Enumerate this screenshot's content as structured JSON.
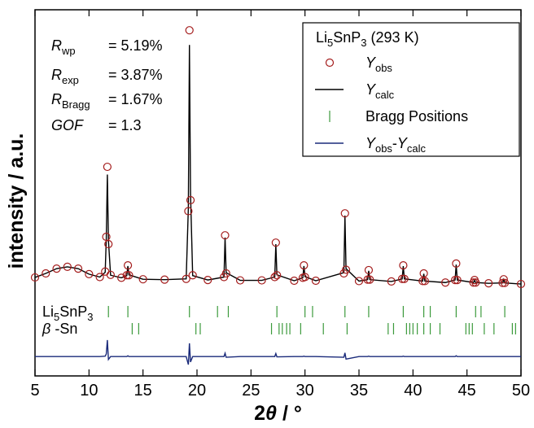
{
  "chart_data": {
    "type": "rietveld",
    "x_label": "2θ / °",
    "y_label": "intensity / a.u.",
    "xlim": [
      5,
      50
    ],
    "xticks": [
      5,
      10,
      15,
      20,
      25,
      30,
      35,
      40,
      45,
      50
    ],
    "ylim": [
      0,
      100
    ],
    "legend_title": "Li5SnP3 (293 K)",
    "legend_position": "upper right",
    "annotations": [
      {
        "symbol": "Rwp",
        "text": "= 5.19%"
      },
      {
        "symbol": "Rexp",
        "text": "= 3.87%"
      },
      {
        "symbol": "RBragg",
        "text": "= 1.67%"
      },
      {
        "symbol": "GOF",
        "text": "= 1.3"
      }
    ],
    "x": [
      5,
      6,
      7,
      8,
      9,
      10,
      11,
      11.5,
      11.6,
      11.7,
      11.8,
      12,
      13,
      13.5,
      13.6,
      13.7,
      15,
      17,
      19,
      19.2,
      19.3,
      19.4,
      19.6,
      21,
      22.5,
      22.6,
      22.7,
      24,
      26,
      27.2,
      27.3,
      27.4,
      29,
      29.8,
      29.9,
      30,
      31,
      33.6,
      33.7,
      33.8,
      35,
      35.8,
      35.9,
      36,
      38,
      39,
      39.1,
      39.2,
      40.9,
      41,
      41.1,
      43,
      43.9,
      44,
      44.1,
      45.6,
      45.7,
      45.8,
      47,
      48.3,
      48.4,
      48.5,
      50
    ],
    "series": [
      {
        "name": "Yobs",
        "style": "markers",
        "color": "#a41c1c",
        "values": [
          26.9,
          28,
          29.3,
          29.8,
          29.3,
          27.8,
          27,
          28.5,
          38,
          57.1,
          36,
          27.6,
          26.8,
          27.5,
          30.2,
          27.5,
          26.4,
          26.3,
          26.5,
          45,
          94.4,
          48,
          27.5,
          26.2,
          27,
          38.4,
          28,
          26.1,
          26.1,
          27,
          36.4,
          27.5,
          26,
          26.8,
          30.2,
          27,
          26,
          28,
          44.4,
          29,
          25.9,
          26.3,
          28.9,
          26.3,
          25.8,
          26.5,
          30.2,
          26.5,
          25.9,
          28,
          25.9,
          25.5,
          26.2,
          30.7,
          26.2,
          25.5,
          26.2,
          25.5,
          25.3,
          25.4,
          26.4,
          25.4,
          25.1
        ]
      },
      {
        "name": "Ycalc",
        "style": "line",
        "color": "#000000",
        "values": [
          26.9,
          28,
          29.3,
          29.8,
          29.3,
          27.8,
          27,
          28.3,
          37.5,
          55,
          37,
          27.5,
          26.8,
          27.4,
          30,
          27.6,
          26.4,
          26.3,
          26.5,
          46,
          90.4,
          50,
          27.4,
          26.2,
          27,
          37.8,
          28.2,
          26.1,
          26.1,
          27,
          36,
          27.6,
          26,
          26.8,
          30,
          27.1,
          26,
          28.2,
          43.8,
          29.3,
          25.9,
          26.3,
          28.7,
          26.3,
          25.8,
          26.5,
          30,
          26.5,
          25.9,
          27.9,
          25.9,
          25.5,
          26.2,
          30.4,
          26.2,
          25.5,
          26.1,
          25.5,
          25.3,
          25.4,
          26.3,
          25.4,
          25.1
        ]
      },
      {
        "name": "Yobs-Ycalc",
        "style": "line",
        "color": "#1a2a7a",
        "values": [
          5.3,
          5.3,
          5.3,
          5.3,
          5.3,
          5.3,
          5.3,
          5.4,
          6,
          9.8,
          4.5,
          5.3,
          5.3,
          5.3,
          5.5,
          5.3,
          5.3,
          5.3,
          5.3,
          3.1,
          8.9,
          3.8,
          5.3,
          5.3,
          5.3,
          6.2,
          5.1,
          5.3,
          5.3,
          5.3,
          6.1,
          5.2,
          5.3,
          5.3,
          5.4,
          5.3,
          5.3,
          5.1,
          6.3,
          4.6,
          5.3,
          5.3,
          5.4,
          5.3,
          5.3,
          5.3,
          5.4,
          5.3,
          5.3,
          5.3,
          5.3,
          5.3,
          5.3,
          5.5,
          5.3,
          5.3,
          5.3,
          5.3,
          5.3,
          5.3,
          5.3,
          5.3,
          5.3
        ]
      }
    ],
    "bragg": {
      "name": "Bragg Positions",
      "color": "#3c9a3c",
      "phases": [
        {
          "name": "Li5SnP3",
          "x": [
            11.8,
            13.6,
            19.3,
            21.9,
            22.9,
            27.4,
            30.0,
            30.7,
            33.7,
            35.9,
            39.1,
            41.0,
            41.6,
            44.0,
            45.8,
            46.3,
            48.5
          ]
        },
        {
          "name": "β -Sn",
          "x": [
            14.0,
            14.6,
            19.9,
            20.3,
            26.9,
            27.6,
            27.9,
            28.3,
            28.6,
            29.6,
            31.7,
            33.9,
            37.7,
            38.2,
            39.4,
            39.7,
            40.0,
            40.4,
            41.0,
            41.6,
            42.5,
            44.9,
            45.2,
            45.5,
            46.6,
            47.5,
            49.2,
            49.5
          ]
        }
      ]
    }
  }
}
